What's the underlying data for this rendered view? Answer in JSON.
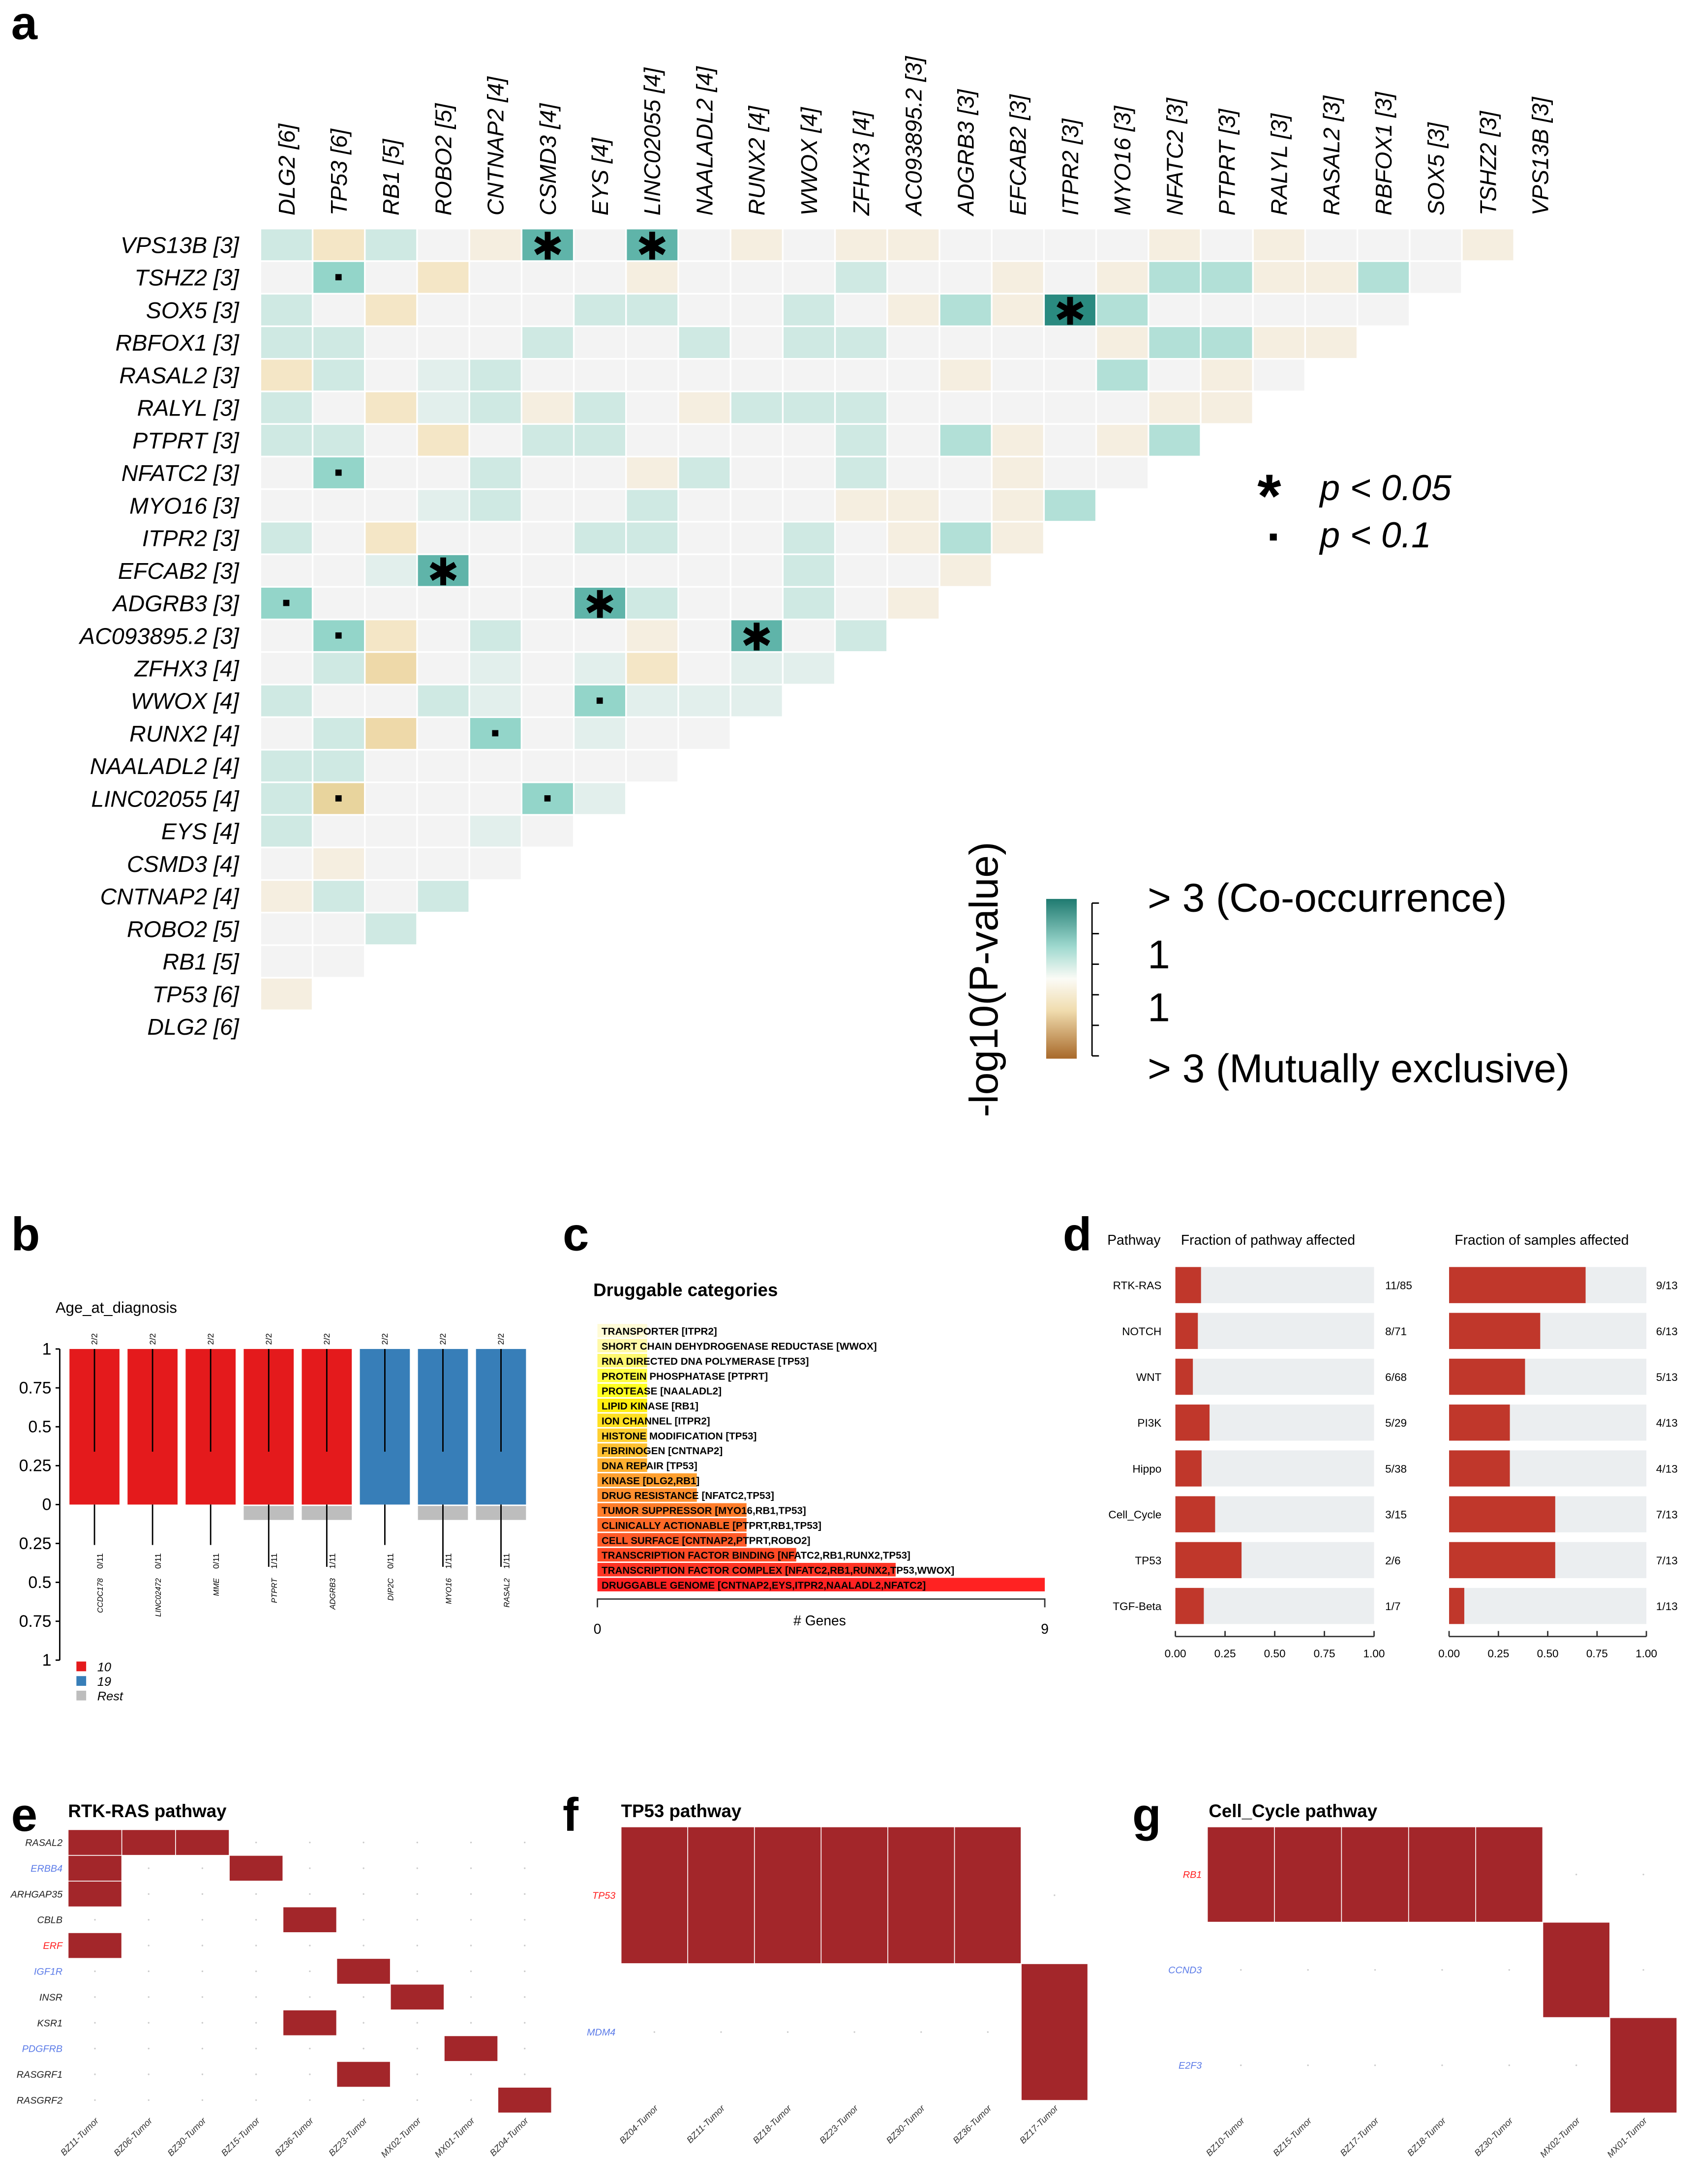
{
  "panel_labels": {
    "a": "a",
    "b": "b",
    "c": "c",
    "d": "d",
    "e": "e",
    "f": "f",
    "g": "g"
  },
  "chart_data": [
    {
      "panel": "a",
      "type": "heatmap",
      "title": "",
      "col_labels": [
        "DLG2 [6]",
        "TP53 [6]",
        "RB1 [5]",
        "ROBO2 [5]",
        "CNTNAP2 [4]",
        "CSMD3 [4]",
        "EYS [4]",
        "LINC02055 [4]",
        "NAALADL2 [4]",
        "RUNX2 [4]",
        "WWOX [4]",
        "ZFHX3 [4]",
        "AC093895.2 [3]",
        "ADGRB3 [3]",
        "EFCAB2 [3]",
        "ITPR2 [3]",
        "MYO16 [3]",
        "NFATC2 [3]",
        "PTPRT [3]",
        "RALYL [3]",
        "RASAL2 [3]",
        "RBFOX1 [3]",
        "SOX5 [3]",
        "TSHZ2 [3]",
        "VPS13B [3]"
      ],
      "row_labels": [
        "VPS13B [3]",
        "TSHZ2 [3]",
        "SOX5 [3]",
        "RBFOX1 [3]",
        "RASAL2 [3]",
        "RALYL [3]",
        "PTPRT [3]",
        "NFATC2 [3]",
        "MYO16 [3]",
        "ITPR2 [3]",
        "EFCAB2 [3]",
        "ADGRB3 [3]",
        "AC093895.2 [3]",
        "ZFHX3 [4]",
        "WWOX [4]",
        "RUNX2 [4]",
        "NAALADL2 [4]",
        "LINC02055 [4]",
        "EYS [4]",
        "CSMD3 [4]",
        "CNTNAP2 [4]",
        "ROBO2 [5]",
        "RB1 [5]",
        "TP53 [6]",
        "DLG2 [6]"
      ],
      "value_note": "signed -log10(P); positive = co-occurrence, negative = mutually exclusive",
      "values": [
        [
          0.5,
          -1,
          0.5,
          0,
          -0.5,
          2.5,
          0,
          2.5,
          0,
          -0.5,
          0,
          -0.5,
          -0.5,
          0,
          0,
          0,
          0,
          -0.5,
          0,
          -0.5,
          0,
          0,
          0,
          -0.5
        ],
        [
          0,
          2,
          0,
          -1,
          0,
          0,
          0,
          -0.5,
          0,
          0,
          0,
          0.5,
          0,
          0,
          -0.5,
          0,
          -0.5,
          1,
          1,
          -0.5,
          -0.5,
          1,
          0
        ],
        [
          0.5,
          0,
          -1,
          0,
          0,
          0,
          0.5,
          0.5,
          0,
          0,
          0.5,
          0,
          -0.5,
          1,
          -0.5,
          3,
          1,
          0,
          0,
          0,
          0,
          0
        ],
        [
          0.5,
          0.5,
          0,
          0,
          0,
          0.5,
          0,
          0,
          0.5,
          0,
          0.5,
          0.5,
          0,
          0,
          0,
          0,
          -0.5,
          1,
          1,
          -0.5,
          -0.5
        ],
        [
          -1,
          0.5,
          0,
          0.3,
          0.5,
          0,
          0,
          0,
          0,
          0,
          0,
          0,
          0,
          -0.5,
          0,
          0,
          1,
          0,
          -0.5,
          0
        ],
        [
          0.5,
          0,
          -1,
          0.3,
          0.5,
          -0.5,
          0.5,
          0,
          -0.5,
          0.5,
          0.5,
          0.5,
          0,
          0,
          0,
          0,
          0,
          -0.5,
          -0.5
        ],
        [
          0.5,
          0.5,
          0,
          -1,
          0,
          0.5,
          0.5,
          0,
          0,
          0,
          0,
          0.5,
          0,
          1,
          -0.5,
          0,
          -0.5,
          1
        ],
        [
          0,
          2,
          0,
          0,
          0.5,
          0,
          0,
          -0.5,
          0.5,
          0,
          0,
          0.5,
          0,
          0,
          -0.5,
          0,
          0
        ],
        [
          0,
          0,
          0,
          0.3,
          0.5,
          0,
          0,
          0.5,
          0,
          0,
          0,
          -0.5,
          -0.5,
          0,
          -0.5,
          1
        ],
        [
          0.5,
          0,
          -1,
          0,
          0,
          0,
          0.5,
          0.5,
          0,
          0,
          0.5,
          0,
          -0.5,
          1,
          -0.5
        ],
        [
          0,
          0,
          0.3,
          2.5,
          0,
          0,
          0,
          0,
          0,
          0,
          0.5,
          0,
          0,
          -0.5
        ],
        [
          2,
          0,
          0,
          0,
          0,
          0,
          2.5,
          0.5,
          0,
          0,
          0.5,
          0,
          -0.5
        ],
        [
          0,
          2,
          -1,
          0,
          0.5,
          0,
          0,
          -0.5,
          0,
          2.5,
          0,
          0.5
        ],
        [
          0,
          0.5,
          -1.5,
          0,
          0.3,
          0,
          0.3,
          -1,
          0,
          0.3,
          0.3
        ],
        [
          0.5,
          0,
          0,
          0.5,
          0.3,
          0,
          2,
          0.3,
          0.3,
          0.3
        ],
        [
          0,
          0.5,
          -1.5,
          0,
          2,
          0,
          0.3,
          0,
          0
        ],
        [
          0.5,
          0.5,
          0,
          0,
          0,
          0,
          0,
          0
        ],
        [
          0.5,
          -2,
          0,
          0,
          0,
          2,
          0.3
        ],
        [
          0.5,
          0,
          0,
          0,
          0.3,
          0
        ],
        [
          0,
          -0.5,
          0,
          0,
          0
        ],
        [
          -0.5,
          0.5,
          0,
          0.5
        ],
        [
          0,
          0,
          0.5
        ],
        [
          0,
          0
        ],
        [
          -0.5
        ],
        []
      ],
      "significance_legend": [
        {
          "symbol": "*",
          "label": "p < 0.05"
        },
        {
          "symbol": "·",
          "label": "p < 0.1"
        }
      ],
      "colorbar": {
        "title": "-log10(P-value)",
        "labels": [
          "> 3 (Co-occurrence)",
          "1",
          "1",
          "> 3 (Mutually exclusive)"
        ],
        "range": [
          -3,
          3
        ]
      },
      "colors": {
        "co_high": "#1f7a70",
        "neutral": "#f3f3f3",
        "mex_high": "#a8692a"
      }
    },
    {
      "panel": "b",
      "type": "bar",
      "title": "Age_at_diagnosis",
      "categories": [
        "CCDC178",
        "LINC02472",
        "MME",
        "PTPRT",
        "ADGRB3",
        "DIP2C",
        "MYO16",
        "RASAL2"
      ],
      "groups": [
        "10",
        "10",
        "10",
        "10",
        "10",
        "19",
        "19",
        "19"
      ],
      "top_fraction": [
        1,
        1,
        1,
        1,
        1,
        1,
        1,
        1
      ],
      "top_labels": [
        "2/2",
        "2/2",
        "2/2",
        "2/2",
        "2/2",
        "2/2",
        "2/2",
        "2/2"
      ],
      "rest_fraction": [
        0,
        0,
        0,
        0.09,
        0.09,
        0,
        0.09,
        0.09
      ],
      "bottom_labels": [
        "0/11",
        "0/11",
        "0/11",
        "1/11",
        "1/11",
        "0/11",
        "1/11",
        "1/11"
      ],
      "whisker_top_low": [
        0.34,
        0.34,
        0.34,
        0.34,
        0.34,
        0.34,
        0.34,
        0.34
      ],
      "whisker_bottom_low": [
        0.26,
        0.26,
        0.26,
        0.4,
        0.4,
        0.26,
        0.4,
        0.4
      ],
      "yticks": [
        "1",
        "0.75",
        "0.5",
        "0.25",
        "0",
        "0.25",
        "0.5",
        "0.75",
        "1"
      ],
      "ylim": [
        -1,
        1
      ],
      "legend": [
        {
          "label": "10",
          "color": "#e41a1c"
        },
        {
          "label": "19",
          "color": "#377eb8"
        },
        {
          "label": "Rest",
          "color": "#bdbdbd"
        }
      ]
    },
    {
      "panel": "c",
      "type": "bar",
      "title": "Druggable categories",
      "categories": [
        "TRANSPORTER [ITPR2]",
        "SHORT CHAIN DEHYDROGENASE REDUCTASE [WWOX]",
        "RNA DIRECTED DNA POLYMERASE [TP53]",
        "PROTEIN PHOSPHATASE [PTPRT]",
        "PROTEASE [NAALADL2]",
        "LIPID KINASE [RB1]",
        "ION CHANNEL [ITPR2]",
        "HISTONE MODIFICATION [TP53]",
        "FIBRINOGEN [CNTNAP2]",
        "DNA REPAIR [TP53]",
        "KINASE [DLG2,RB1]",
        "DRUG RESISTANCE [NFATC2,TP53]",
        "TUMOR SUPPRESSOR [MYO16,RB1,TP53]",
        "CLINICALLY ACTIONABLE [PTPRT,RB1,TP53]",
        "CELL SURFACE [CNTNAP2,PTPRT,ROBO2]",
        "TRANSCRIPTION FACTOR BINDING [NFATC2,RB1,RUNX2,TP53]",
        "TRANSCRIPTION FACTOR COMPLEX [NFATC2,RB1,RUNX2,TP53,WWOX]",
        "DRUGGABLE GENOME [CNTNAP2,EYS,ITPR2,NAALADL2,NFATC2]"
      ],
      "values": [
        1,
        1,
        1,
        1,
        1,
        1,
        1,
        1,
        1,
        1,
        2,
        2,
        3,
        3,
        3,
        4,
        6,
        9
      ],
      "colors": [
        "#fffbd6",
        "#fff9a8",
        "#fff870",
        "#ffff40",
        "#ffff20",
        "#ffee10",
        "#ffe020",
        "#ffd030",
        "#ffc030",
        "#ffb030",
        "#ffa030",
        "#ff9030",
        "#ff7d2a",
        "#ff6a28",
        "#ff5a28",
        "#ff4a25",
        "#ff3525",
        "#ff2222"
      ],
      "xlabel": "# Genes",
      "xlim": [
        0,
        9
      ],
      "xticks": [
        "0",
        "9"
      ]
    },
    {
      "panel": "d",
      "type": "bar",
      "header": "Pathway",
      "categories": [
        "RTK-RAS",
        "NOTCH",
        "WNT",
        "PI3K",
        "Hippo",
        "Cell_Cycle",
        "TP53",
        "TGF-Beta"
      ],
      "series": [
        {
          "name": "Fraction of pathway affected",
          "values": [
            0.129,
            0.113,
            0.088,
            0.172,
            0.132,
            0.2,
            0.333,
            0.143
          ],
          "labels": [
            "11/85",
            "8/71",
            "6/68",
            "5/29",
            "5/38",
            "3/15",
            "2/6",
            "1/7"
          ]
        },
        {
          "name": "Fraction of samples affected",
          "values": [
            0.692,
            0.462,
            0.385,
            0.308,
            0.308,
            0.538,
            0.538,
            0.077
          ],
          "labels": [
            "9/13",
            "6/13",
            "5/13",
            "4/13",
            "4/13",
            "7/13",
            "7/13",
            "1/13"
          ]
        }
      ],
      "xlim": [
        0,
        1
      ],
      "xticks": [
        "0.00",
        "0.25",
        "0.50",
        "0.75",
        "1.00"
      ],
      "colors": {
        "bar": "#c0372b",
        "track": "#ebeef0"
      }
    },
    {
      "panel": "e",
      "type": "heatmap",
      "title": "RTK-RAS pathway",
      "rows": [
        {
          "gene": "RASAL2",
          "color": "#222222",
          "values": [
            1,
            1,
            1,
            0,
            0,
            0,
            0,
            0,
            0
          ]
        },
        {
          "gene": "ERBB4",
          "color": "#5b7be8",
          "values": [
            1,
            0,
            0,
            1,
            0,
            0,
            0,
            0,
            0
          ]
        },
        {
          "gene": "ARHGAP35",
          "color": "#222222",
          "values": [
            1,
            0,
            0,
            0,
            0,
            0,
            0,
            0,
            0
          ]
        },
        {
          "gene": "CBLB",
          "color": "#222222",
          "values": [
            0,
            0,
            0,
            0,
            1,
            0,
            0,
            0,
            0
          ]
        },
        {
          "gene": "ERF",
          "color": "#ff2020",
          "values": [
            1,
            0,
            0,
            0,
            0,
            0,
            0,
            0,
            0
          ]
        },
        {
          "gene": "IGF1R",
          "color": "#5b7be8",
          "values": [
            0,
            0,
            0,
            0,
            0,
            1,
            0,
            0,
            0
          ]
        },
        {
          "gene": "INSR",
          "color": "#222222",
          "values": [
            0,
            0,
            0,
            0,
            0,
            0,
            1,
            0,
            0
          ]
        },
        {
          "gene": "KSR1",
          "color": "#222222",
          "values": [
            0,
            0,
            0,
            0,
            1,
            0,
            0,
            0,
            0
          ]
        },
        {
          "gene": "PDGFRB",
          "color": "#5b7be8",
          "values": [
            0,
            0,
            0,
            0,
            0,
            0,
            0,
            1,
            0
          ]
        },
        {
          "gene": "RASGRF1",
          "color": "#222222",
          "values": [
            0,
            0,
            0,
            0,
            0,
            1,
            0,
            0,
            0
          ]
        },
        {
          "gene": "RASGRF2",
          "color": "#222222",
          "values": [
            0,
            0,
            0,
            0,
            0,
            0,
            0,
            0,
            1
          ]
        }
      ],
      "samples": [
        "BZ11-Tumor",
        "BZ06-Tumor",
        "BZ30-Tumor",
        "BZ15-Tumor",
        "BZ36-Tumor",
        "BZ23-Tumor",
        "MX02-Tumor",
        "MX01-Tumor",
        "BZ04-Tumor"
      ]
    },
    {
      "panel": "f",
      "type": "heatmap",
      "title": "TP53 pathway",
      "rows": [
        {
          "gene": "TP53",
          "color": "#ff2020",
          "values": [
            1,
            1,
            1,
            1,
            1,
            1,
            0
          ]
        },
        {
          "gene": "MDM4",
          "color": "#5b7be8",
          "values": [
            0,
            0,
            0,
            0,
            0,
            0,
            1
          ]
        }
      ],
      "samples": [
        "BZ04-Tumor",
        "BZ11-Tumor",
        "BZ18-Tumor",
        "BZ23-Tumor",
        "BZ30-Tumor",
        "BZ36-Tumor",
        "BZ17-Tumor"
      ]
    },
    {
      "panel": "g",
      "type": "heatmap",
      "title": "Cell_Cycle pathway",
      "rows": [
        {
          "gene": "RB1",
          "color": "#ff2020",
          "values": [
            1,
            1,
            1,
            1,
            1,
            0,
            0
          ]
        },
        {
          "gene": "CCND3",
          "color": "#5b7be8",
          "values": [
            0,
            0,
            0,
            0,
            0,
            1,
            0
          ]
        },
        {
          "gene": "E2F3",
          "color": "#5b7be8",
          "values": [
            0,
            0,
            0,
            0,
            0,
            0,
            1
          ]
        }
      ],
      "samples": [
        "BZ10-Tumor",
        "BZ15-Tumor",
        "BZ17-Tumor",
        "BZ18-Tumor",
        "BZ30-Tumor",
        "MX02-Tumor",
        "MX01-Tumor"
      ]
    }
  ],
  "oncoprint_color": "#a3262a"
}
